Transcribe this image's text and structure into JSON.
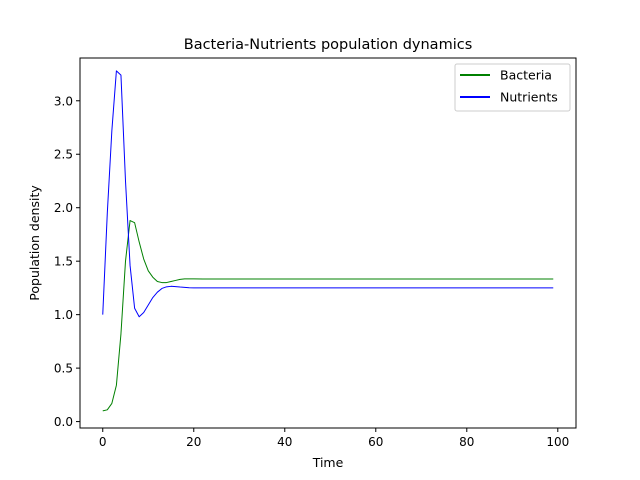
{
  "chart_data": {
    "type": "line",
    "title": "Bacteria-Nutrients population dynamics",
    "xlabel": "Time",
    "ylabel": "Population density",
    "xlim": [
      -5,
      104
    ],
    "ylim": [
      -0.06,
      3.4
    ],
    "xticks": [
      0,
      20,
      40,
      60,
      80,
      100
    ],
    "yticks": [
      0.0,
      0.5,
      1.0,
      1.5,
      2.0,
      2.5,
      3.0
    ],
    "xtick_labels": [
      "0",
      "20",
      "40",
      "60",
      "80",
      "100"
    ],
    "ytick_labels": [
      "0.0",
      "0.5",
      "1.0",
      "1.5",
      "2.0",
      "2.5",
      "3.0"
    ],
    "grid": false,
    "legend_position": "top-right",
    "series": [
      {
        "name": "Bacteria",
        "color": "#008000",
        "x": [
          0,
          1,
          2,
          3,
          4,
          5,
          6,
          7,
          8,
          9,
          10,
          11,
          12,
          13,
          14,
          15,
          16,
          17,
          18,
          19,
          20,
          22,
          25,
          30,
          40,
          50,
          60,
          70,
          80,
          90,
          99
        ],
        "y": [
          0.1,
          0.11,
          0.17,
          0.34,
          0.82,
          1.5,
          1.88,
          1.86,
          1.68,
          1.52,
          1.41,
          1.35,
          1.31,
          1.3,
          1.3,
          1.31,
          1.32,
          1.33,
          1.335,
          1.335,
          1.335,
          1.333,
          1.333,
          1.333,
          1.333,
          1.333,
          1.333,
          1.333,
          1.333,
          1.333,
          1.333
        ]
      },
      {
        "name": "Nutrients",
        "color": "#0000ff",
        "x": [
          0,
          1,
          2,
          3,
          4,
          5,
          6,
          7,
          8,
          9,
          10,
          11,
          12,
          13,
          14,
          15,
          16,
          17,
          18,
          19,
          20,
          22,
          25,
          30,
          40,
          50,
          60,
          70,
          80,
          90,
          99
        ],
        "y": [
          1.0,
          1.95,
          2.72,
          3.28,
          3.24,
          2.25,
          1.46,
          1.06,
          0.98,
          1.02,
          1.09,
          1.16,
          1.21,
          1.245,
          1.26,
          1.265,
          1.262,
          1.258,
          1.255,
          1.252,
          1.25,
          1.25,
          1.25,
          1.25,
          1.25,
          1.25,
          1.25,
          1.25,
          1.25,
          1.25,
          1.25
        ]
      }
    ]
  }
}
